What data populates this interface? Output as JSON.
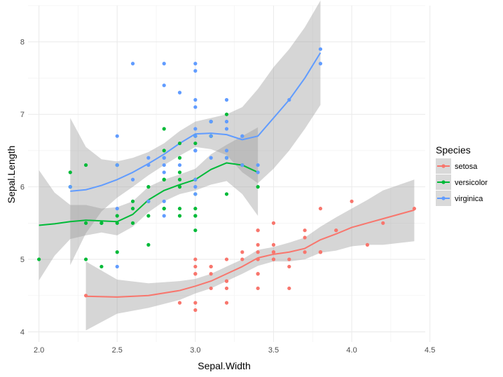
{
  "chart_data": {
    "type": "scatter",
    "xlabel": "Sepal.Width",
    "ylabel": "Sepal.Length",
    "xlim": [
      1.93,
      4.47
    ],
    "ylim": [
      3.86,
      8.5
    ],
    "x_ticks": [
      2.0,
      2.5,
      3.0,
      3.5,
      4.0,
      4.5
    ],
    "x_tick_labels": [
      "2.0",
      "2.5",
      "3.0",
      "3.5",
      "4.0",
      "4.5"
    ],
    "y_ticks": [
      4,
      5,
      6,
      7,
      8
    ],
    "y_tick_labels": [
      "4",
      "5",
      "6",
      "7",
      "8"
    ],
    "grid": true,
    "legend": {
      "title": "Species",
      "placement": "right"
    },
    "smooth": "loess with confidence band",
    "series": [
      {
        "name": "setosa",
        "color": "#F8766D",
        "points": [
          [
            3.5,
            5.1
          ],
          [
            3.0,
            4.9
          ],
          [
            3.2,
            4.7
          ],
          [
            3.1,
            4.6
          ],
          [
            3.6,
            5.0
          ],
          [
            3.9,
            5.4
          ],
          [
            3.4,
            4.6
          ],
          [
            3.4,
            5.0
          ],
          [
            2.9,
            4.4
          ],
          [
            3.1,
            4.9
          ],
          [
            3.7,
            5.4
          ],
          [
            3.4,
            4.8
          ],
          [
            3.0,
            4.8
          ],
          [
            3.0,
            4.3
          ],
          [
            4.0,
            5.8
          ],
          [
            4.4,
            5.7
          ],
          [
            3.9,
            5.4
          ],
          [
            3.5,
            5.1
          ],
          [
            3.8,
            5.7
          ],
          [
            3.8,
            5.1
          ],
          [
            3.4,
            5.4
          ],
          [
            3.7,
            5.1
          ],
          [
            3.6,
            4.6
          ],
          [
            3.3,
            5.1
          ],
          [
            3.4,
            4.8
          ],
          [
            3.0,
            5.0
          ],
          [
            3.4,
            5.0
          ],
          [
            3.5,
            5.2
          ],
          [
            3.4,
            5.2
          ],
          [
            3.2,
            4.7
          ],
          [
            3.1,
            4.8
          ],
          [
            3.4,
            5.4
          ],
          [
            4.1,
            5.2
          ],
          [
            4.2,
            5.5
          ],
          [
            3.1,
            4.9
          ],
          [
            3.2,
            5.0
          ],
          [
            3.5,
            5.5
          ],
          [
            3.6,
            4.9
          ],
          [
            3.0,
            4.4
          ],
          [
            3.4,
            5.1
          ],
          [
            3.5,
            5.0
          ],
          [
            2.3,
            4.5
          ],
          [
            3.2,
            4.4
          ],
          [
            3.5,
            5.0
          ],
          [
            3.8,
            5.1
          ],
          [
            3.0,
            4.8
          ],
          [
            3.8,
            5.1
          ],
          [
            3.2,
            4.6
          ],
          [
            3.7,
            5.3
          ],
          [
            3.3,
            5.0
          ]
        ],
        "smooth_line": [
          [
            2.3,
            4.49
          ],
          [
            2.5,
            4.48
          ],
          [
            2.7,
            4.5
          ],
          [
            2.9,
            4.57
          ],
          [
            3.0,
            4.63
          ],
          [
            3.1,
            4.7
          ],
          [
            3.2,
            4.8
          ],
          [
            3.3,
            4.9
          ],
          [
            3.4,
            5.02
          ],
          [
            3.5,
            5.07
          ],
          [
            3.6,
            5.1
          ],
          [
            3.7,
            5.15
          ],
          [
            3.8,
            5.27
          ],
          [
            3.9,
            5.35
          ],
          [
            4.0,
            5.44
          ],
          [
            4.1,
            5.5
          ],
          [
            4.2,
            5.56
          ],
          [
            4.4,
            5.68
          ]
        ],
        "band_upper": [
          [
            2.3,
            4.97
          ],
          [
            2.5,
            4.72
          ],
          [
            2.7,
            4.67
          ],
          [
            2.9,
            4.7
          ],
          [
            3.0,
            4.73
          ],
          [
            3.1,
            4.8
          ],
          [
            3.2,
            4.9
          ],
          [
            3.3,
            5.0
          ],
          [
            3.4,
            5.13
          ],
          [
            3.5,
            5.17
          ],
          [
            3.6,
            5.23
          ],
          [
            3.7,
            5.3
          ],
          [
            3.8,
            5.45
          ],
          [
            3.9,
            5.58
          ],
          [
            4.0,
            5.7
          ],
          [
            4.1,
            5.82
          ],
          [
            4.2,
            5.95
          ],
          [
            4.4,
            6.1
          ]
        ],
        "band_lower": [
          [
            2.3,
            4.02
          ],
          [
            2.5,
            4.25
          ],
          [
            2.7,
            4.33
          ],
          [
            2.9,
            4.44
          ],
          [
            3.0,
            4.53
          ],
          [
            3.1,
            4.6
          ],
          [
            3.2,
            4.7
          ],
          [
            3.3,
            4.8
          ],
          [
            3.4,
            4.91
          ],
          [
            3.5,
            4.97
          ],
          [
            3.6,
            4.97
          ],
          [
            3.7,
            5.0
          ],
          [
            3.8,
            5.09
          ],
          [
            3.9,
            5.12
          ],
          [
            4.0,
            5.18
          ],
          [
            4.1,
            5.2
          ],
          [
            4.2,
            5.2
          ],
          [
            4.4,
            5.25
          ]
        ]
      },
      {
        "name": "versicolor",
        "color": "#00BA38",
        "points": [
          [
            3.2,
            7.0
          ],
          [
            3.2,
            6.4
          ],
          [
            3.1,
            6.9
          ],
          [
            2.3,
            5.5
          ],
          [
            2.8,
            6.5
          ],
          [
            2.8,
            5.7
          ],
          [
            3.3,
            6.3
          ],
          [
            2.4,
            4.9
          ],
          [
            2.9,
            6.6
          ],
          [
            2.7,
            5.2
          ],
          [
            2.0,
            5.0
          ],
          [
            3.0,
            5.9
          ],
          [
            2.2,
            6.0
          ],
          [
            2.9,
            6.1
          ],
          [
            2.9,
            5.6
          ],
          [
            3.1,
            6.7
          ],
          [
            3.0,
            5.6
          ],
          [
            2.7,
            5.8
          ],
          [
            2.2,
            6.2
          ],
          [
            2.5,
            5.6
          ],
          [
            3.2,
            5.9
          ],
          [
            2.8,
            6.1
          ],
          [
            2.5,
            6.3
          ],
          [
            2.8,
            6.1
          ],
          [
            2.9,
            6.4
          ],
          [
            3.0,
            6.6
          ],
          [
            2.8,
            6.8
          ],
          [
            3.0,
            6.7
          ],
          [
            2.9,
            6.0
          ],
          [
            2.6,
            5.7
          ],
          [
            2.4,
            5.5
          ],
          [
            2.4,
            5.5
          ],
          [
            2.7,
            5.8
          ],
          [
            2.7,
            6.0
          ],
          [
            3.0,
            5.4
          ],
          [
            3.4,
            6.0
          ],
          [
            3.1,
            6.7
          ],
          [
            2.3,
            6.3
          ],
          [
            3.0,
            5.6
          ],
          [
            2.5,
            5.5
          ],
          [
            2.6,
            5.5
          ],
          [
            3.0,
            6.1
          ],
          [
            2.6,
            5.8
          ],
          [
            2.3,
            5.0
          ],
          [
            2.7,
            5.6
          ],
          [
            3.0,
            5.7
          ],
          [
            2.9,
            5.7
          ],
          [
            2.9,
            6.2
          ],
          [
            2.5,
            5.1
          ],
          [
            2.8,
            5.7
          ]
        ],
        "smooth_line": [
          [
            2.0,
            5.47
          ],
          [
            2.1,
            5.49
          ],
          [
            2.2,
            5.52
          ],
          [
            2.3,
            5.54
          ],
          [
            2.4,
            5.53
          ],
          [
            2.5,
            5.52
          ],
          [
            2.6,
            5.62
          ],
          [
            2.7,
            5.82
          ],
          [
            2.8,
            5.95
          ],
          [
            2.9,
            6.03
          ],
          [
            3.0,
            6.1
          ],
          [
            3.1,
            6.24
          ],
          [
            3.2,
            6.33
          ],
          [
            3.3,
            6.3
          ],
          [
            3.4,
            6.2
          ]
        ],
        "band_upper": [
          [
            2.0,
            6.23
          ],
          [
            2.1,
            5.92
          ],
          [
            2.2,
            5.75
          ],
          [
            2.3,
            5.75
          ],
          [
            2.4,
            5.7
          ],
          [
            2.5,
            5.72
          ],
          [
            2.6,
            5.8
          ],
          [
            2.7,
            6.0
          ],
          [
            2.8,
            6.1
          ],
          [
            2.9,
            6.17
          ],
          [
            3.0,
            6.25
          ],
          [
            3.1,
            6.45
          ],
          [
            3.2,
            6.58
          ],
          [
            3.3,
            6.7
          ],
          [
            3.4,
            6.82
          ]
        ],
        "band_lower": [
          [
            2.0,
            4.71
          ],
          [
            2.1,
            5.05
          ],
          [
            2.2,
            5.28
          ],
          [
            2.3,
            5.33
          ],
          [
            2.4,
            5.37
          ],
          [
            2.5,
            5.33
          ],
          [
            2.6,
            5.45
          ],
          [
            2.7,
            5.65
          ],
          [
            2.8,
            5.8
          ],
          [
            2.9,
            5.9
          ],
          [
            3.0,
            5.95
          ],
          [
            3.1,
            6.03
          ],
          [
            3.2,
            6.08
          ],
          [
            3.3,
            5.9
          ],
          [
            3.4,
            5.6
          ]
        ]
      },
      {
        "name": "virginica",
        "color": "#619CFF",
        "points": [
          [
            3.3,
            6.3
          ],
          [
            2.7,
            5.8
          ],
          [
            3.0,
            7.1
          ],
          [
            2.9,
            6.3
          ],
          [
            3.0,
            6.5
          ],
          [
            3.0,
            7.6
          ],
          [
            2.5,
            4.9
          ],
          [
            2.9,
            7.3
          ],
          [
            2.5,
            6.7
          ],
          [
            3.6,
            7.2
          ],
          [
            3.2,
            6.5
          ],
          [
            2.7,
            6.4
          ],
          [
            3.0,
            6.8
          ],
          [
            2.5,
            5.7
          ],
          [
            2.8,
            5.8
          ],
          [
            3.2,
            6.4
          ],
          [
            3.0,
            6.5
          ],
          [
            3.8,
            7.7
          ],
          [
            2.6,
            7.7
          ],
          [
            2.2,
            6.0
          ],
          [
            3.2,
            6.9
          ],
          [
            2.8,
            5.6
          ],
          [
            2.8,
            7.7
          ],
          [
            2.7,
            6.3
          ],
          [
            3.3,
            6.7
          ],
          [
            3.2,
            7.2
          ],
          [
            2.8,
            6.2
          ],
          [
            3.0,
            6.1
          ],
          [
            2.8,
            6.4
          ],
          [
            3.0,
            7.2
          ],
          [
            2.8,
            7.4
          ],
          [
            3.8,
            7.9
          ],
          [
            2.8,
            6.4
          ],
          [
            2.8,
            6.3
          ],
          [
            2.6,
            6.1
          ],
          [
            3.0,
            7.7
          ],
          [
            3.4,
            6.3
          ],
          [
            3.1,
            6.4
          ],
          [
            3.0,
            6.0
          ],
          [
            3.1,
            6.9
          ],
          [
            3.1,
            6.7
          ],
          [
            3.1,
            6.9
          ],
          [
            2.7,
            5.8
          ],
          [
            3.2,
            6.8
          ],
          [
            3.3,
            6.7
          ],
          [
            3.0,
            6.7
          ],
          [
            2.5,
            6.3
          ],
          [
            3.0,
            6.5
          ],
          [
            3.4,
            6.2
          ],
          [
            3.0,
            5.9
          ]
        ],
        "smooth_line": [
          [
            2.2,
            5.94
          ],
          [
            2.3,
            5.96
          ],
          [
            2.4,
            6.02
          ],
          [
            2.5,
            6.1
          ],
          [
            2.6,
            6.2
          ],
          [
            2.7,
            6.32
          ],
          [
            2.8,
            6.45
          ],
          [
            2.9,
            6.6
          ],
          [
            3.0,
            6.73
          ],
          [
            3.1,
            6.74
          ],
          [
            3.2,
            6.72
          ],
          [
            3.3,
            6.65
          ],
          [
            3.4,
            6.7
          ],
          [
            3.5,
            6.95
          ],
          [
            3.6,
            7.2
          ],
          [
            3.7,
            7.5
          ],
          [
            3.8,
            7.85
          ]
        ],
        "band_upper": [
          [
            2.2,
            6.95
          ],
          [
            2.3,
            6.55
          ],
          [
            2.4,
            6.38
          ],
          [
            2.5,
            6.35
          ],
          [
            2.6,
            6.4
          ],
          [
            2.7,
            6.48
          ],
          [
            2.8,
            6.6
          ],
          [
            2.9,
            6.77
          ],
          [
            3.0,
            6.9
          ],
          [
            3.1,
            6.95
          ],
          [
            3.2,
            7.0
          ],
          [
            3.3,
            7.1
          ],
          [
            3.4,
            7.35
          ],
          [
            3.5,
            7.65
          ],
          [
            3.6,
            7.9
          ],
          [
            3.7,
            8.2
          ],
          [
            3.8,
            8.57
          ]
        ],
        "band_lower": [
          [
            2.2,
            4.92
          ],
          [
            2.3,
            5.36
          ],
          [
            2.4,
            5.66
          ],
          [
            2.5,
            5.85
          ],
          [
            2.6,
            6.0
          ],
          [
            2.7,
            6.16
          ],
          [
            2.8,
            6.3
          ],
          [
            2.9,
            6.43
          ],
          [
            3.0,
            6.55
          ],
          [
            3.1,
            6.52
          ],
          [
            3.2,
            6.44
          ],
          [
            3.3,
            6.2
          ],
          [
            3.4,
            6.05
          ],
          [
            3.5,
            6.25
          ],
          [
            3.6,
            6.5
          ],
          [
            3.7,
            6.8
          ],
          [
            3.8,
            7.13
          ]
        ]
      }
    ]
  }
}
